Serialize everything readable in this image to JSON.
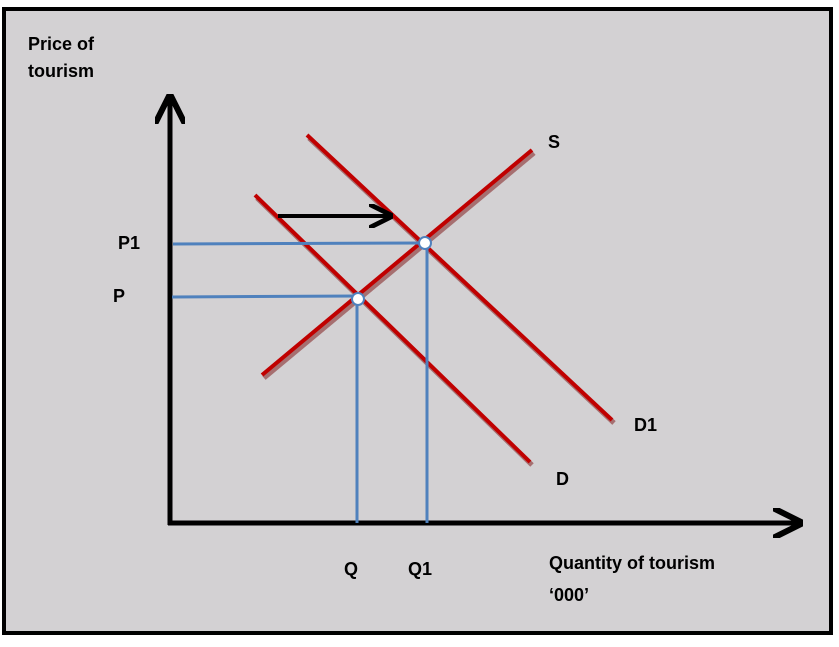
{
  "axes": {
    "y_label": [
      "Price of",
      "tourism"
    ],
    "x_label": [
      "Quantity of tourism",
      "‘000’"
    ]
  },
  "curves": {
    "supply": "S",
    "demand_new": "D1",
    "demand": "D"
  },
  "prices": [
    "P1",
    "P"
  ],
  "quantities": [
    "Q",
    "Q1"
  ]
}
